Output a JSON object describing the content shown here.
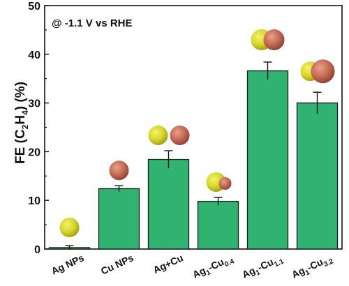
{
  "chart_data": {
    "type": "bar",
    "annotation": "@ -1.1 V vs RHE",
    "ylabel": {
      "prefix": "FE (C",
      "sub1": "2",
      "mid": "H",
      "sub2": "4",
      "suffix": ")   (%)"
    },
    "ylim": [
      0,
      50
    ],
    "yticks": [
      0,
      10,
      20,
      30,
      40,
      50
    ],
    "categories": [
      {
        "main": "Ag NPs"
      },
      {
        "main": "Cu NPs"
      },
      {
        "main": "Ag+Cu"
      },
      {
        "main": "Ag",
        "sub1": "1",
        "mid": "-Cu",
        "sub2": "0.4"
      },
      {
        "main": "Ag",
        "sub1": "1",
        "mid": "-Cu",
        "sub2": "1.1"
      },
      {
        "main": "Ag",
        "sub1": "1",
        "mid": "-Cu",
        "sub2": "3.2"
      }
    ],
    "values": [
      0.3,
      12.4,
      18.4,
      9.8,
      36.6,
      30.0
    ],
    "errors": [
      0.4,
      0.6,
      1.8,
      0.8,
      1.8,
      2.2
    ],
    "particles": [
      "ag",
      "cu",
      "ag+cu",
      "dimer-small",
      "dimer-equal",
      "dimer-large"
    ],
    "colors": {
      "bar": "#30b371",
      "bar_edge": "#1a1a1a",
      "ag_particle": "#d7d62a",
      "cu_particle": "#c46a55"
    },
    "grid": false
  }
}
